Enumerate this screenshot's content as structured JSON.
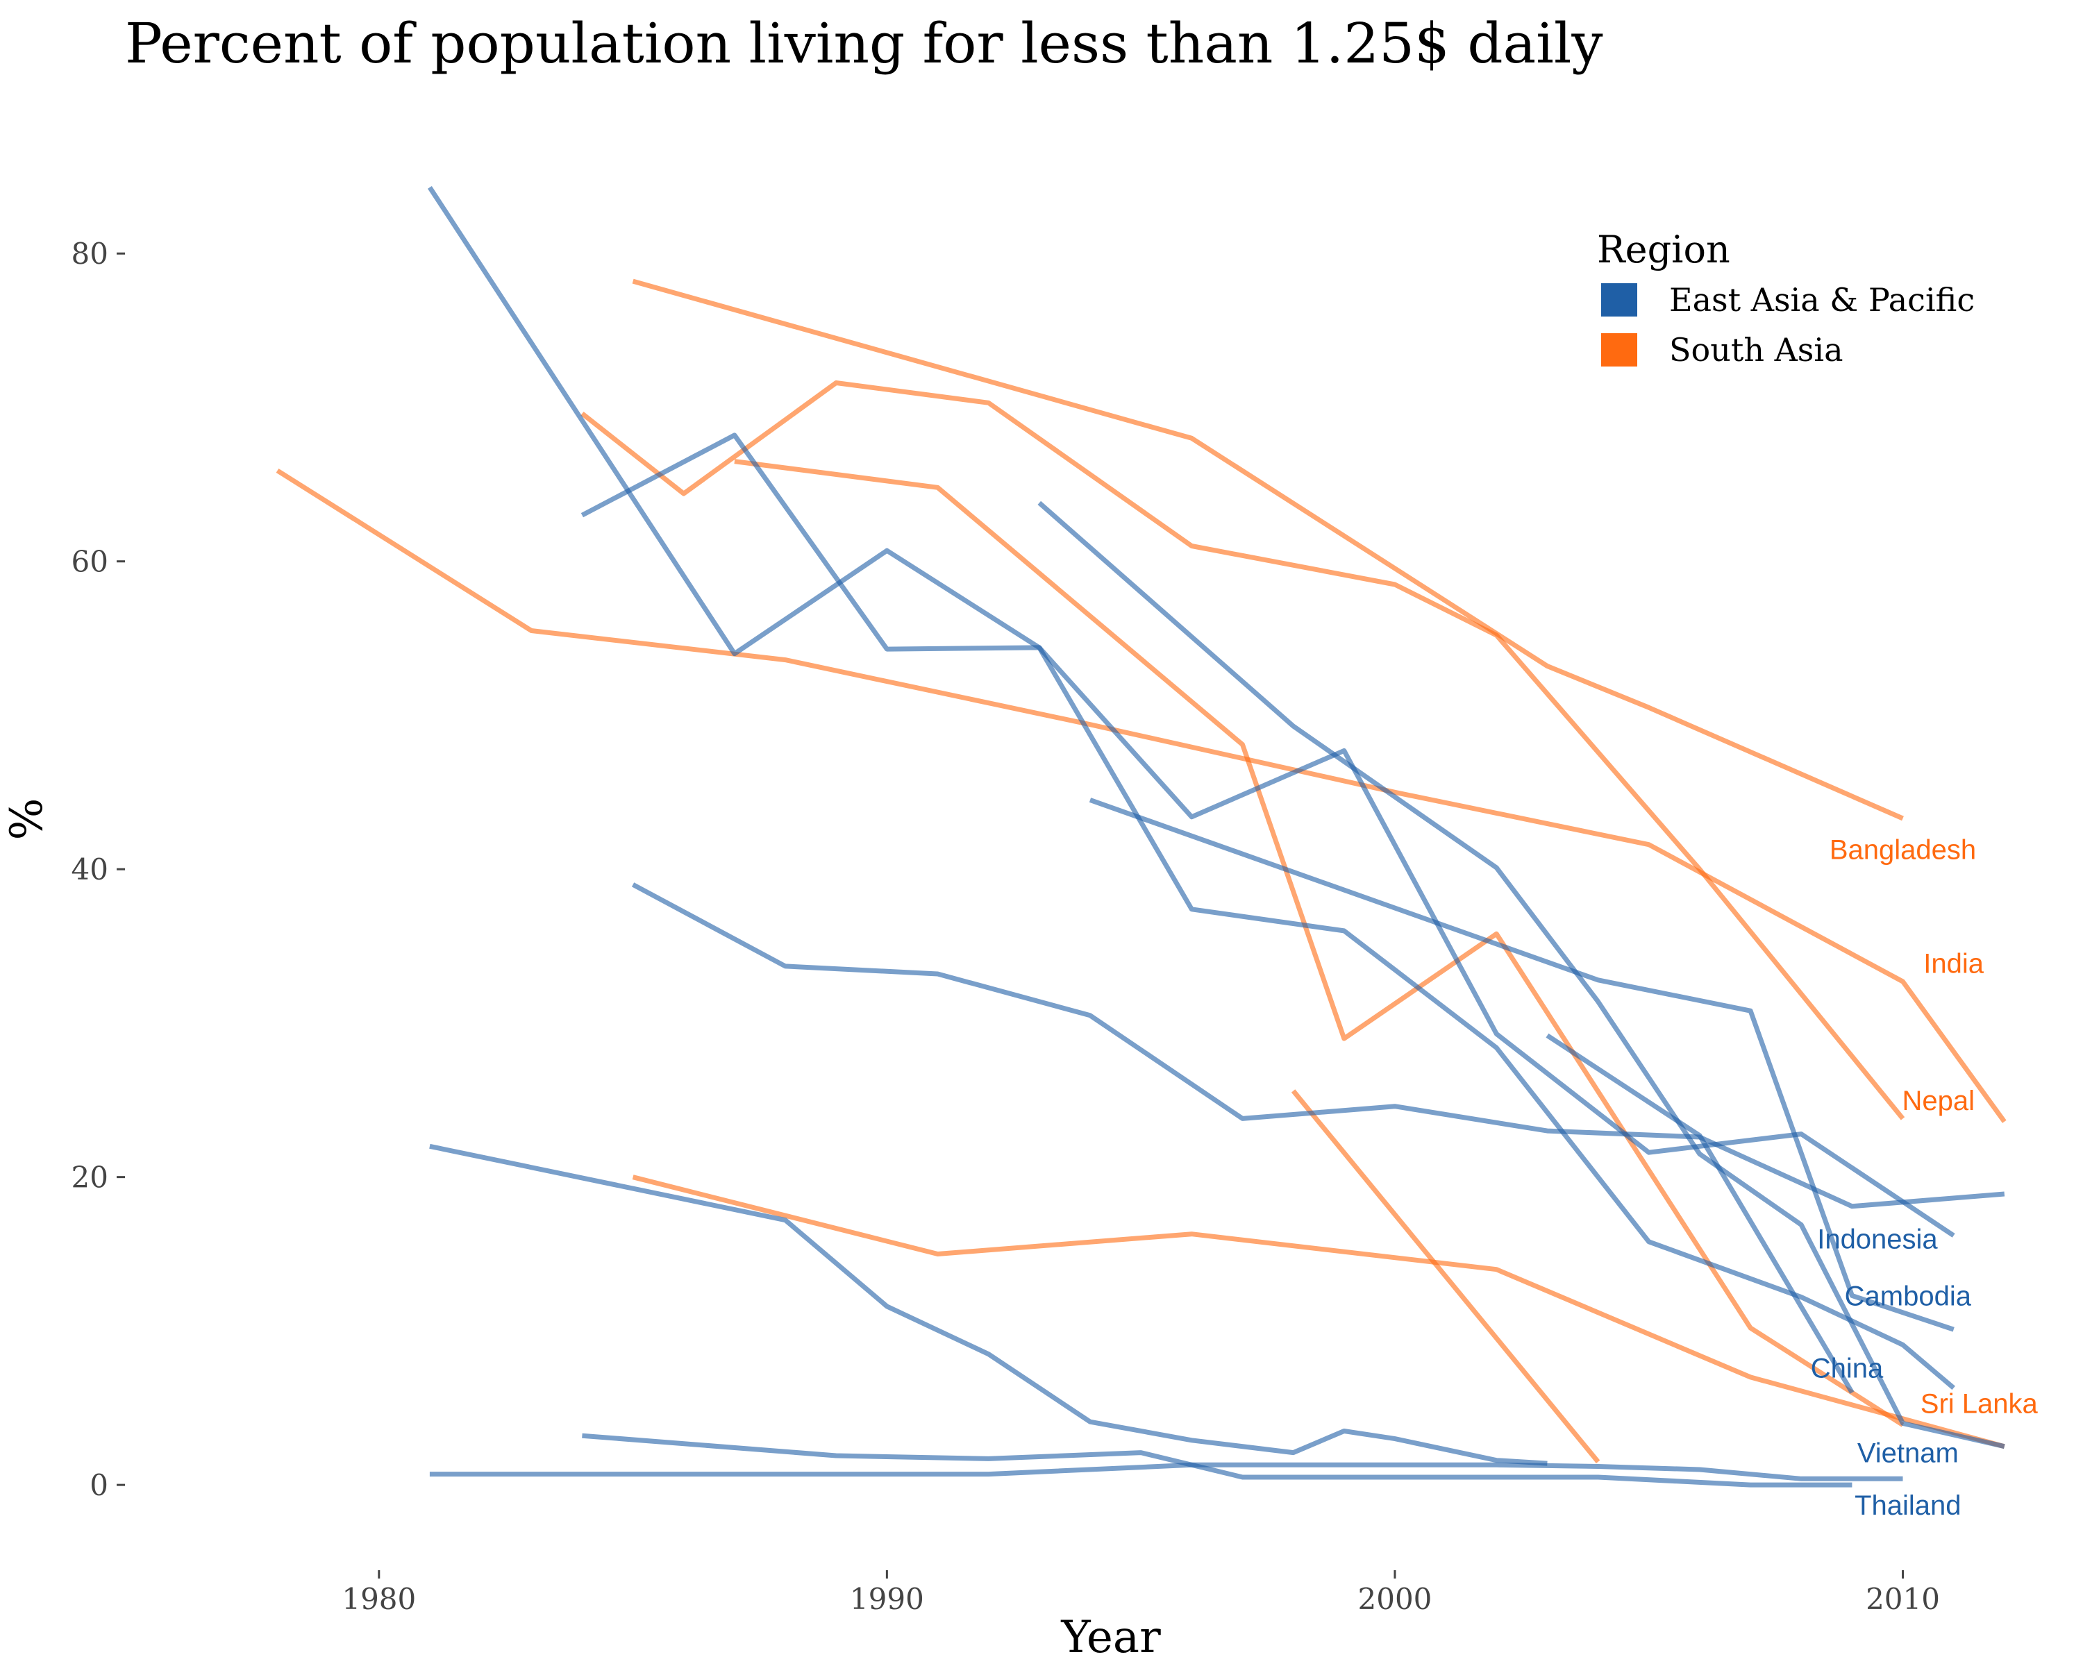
{
  "chart_data": {
    "type": "line",
    "title": "Percent of population living for less than 1.25$ daily",
    "xlabel": "Year",
    "ylabel": "%",
    "xlim": [
      1975,
      2013
    ],
    "ylim": [
      -5,
      87
    ],
    "x_ticks": [
      1980,
      1990,
      2000,
      2010
    ],
    "y_ticks": [
      0,
      20,
      40,
      60,
      80
    ],
    "grid": false,
    "legend": {
      "title": "Region",
      "placement": "top-right",
      "entries": [
        {
          "name": "East Asia & Pacific",
          "color": "#1f5fa6"
        },
        {
          "name": "South Asia",
          "color": "#ff6a10"
        }
      ]
    },
    "series": [
      {
        "region": "South Asia",
        "label": "Bangladesh",
        "label_at": [
          2010,
          41.3
        ],
        "points": [
          [
            1985,
            78.2
          ],
          [
            1996,
            68
          ],
          [
            2003,
            53.2
          ],
          [
            2005,
            50.5
          ],
          [
            2010,
            43.3
          ]
        ]
      },
      {
        "region": "South Asia",
        "label": "India",
        "label_at": [
          2011,
          33.9
        ],
        "points": [
          [
            1978,
            65.9
          ],
          [
            1983,
            55.5
          ],
          [
            1988,
            53.6
          ],
          [
            1994,
            49.4
          ],
          [
            2000,
            45
          ],
          [
            2005,
            41.6
          ],
          [
            2010,
            32.7
          ],
          [
            2012,
            23.6
          ]
        ]
      },
      {
        "region": "South Asia",
        "label": "Nepal",
        "label_at": [
          2010.7,
          25
        ],
        "points": [
          [
            1984,
            69.6
          ],
          [
            1986,
            64.4
          ],
          [
            1989,
            71.6
          ],
          [
            1992,
            70.3
          ],
          [
            1996,
            61
          ],
          [
            2000,
            58.5
          ],
          [
            2002,
            55.2
          ],
          [
            2006,
            40
          ],
          [
            2010,
            23.8
          ]
        ]
      },
      {
        "region": "South Asia",
        "label": "Sri Lanka",
        "label_at": [
          2011.5,
          5.3
        ],
        "points": [
          [
            1985,
            20
          ],
          [
            1991,
            15
          ],
          [
            1996,
            16.3
          ],
          [
            2002,
            14
          ],
          [
            2007,
            7
          ],
          [
            2012,
            2.5
          ]
        ]
      },
      {
        "region": "South Asia",
        "label": "",
        "points": [
          [
            1987,
            66.5
          ],
          [
            1991,
            64.8
          ],
          [
            1997,
            48.1
          ],
          [
            1999,
            29
          ],
          [
            2002,
            35.8
          ],
          [
            2007,
            10.2
          ],
          [
            2010,
            3.9
          ]
        ]
      },
      {
        "region": "South Asia",
        "label": "",
        "points": [
          [
            1998,
            25.6
          ],
          [
            2004,
            1.5
          ]
        ]
      },
      {
        "region": "East Asia & Pacific",
        "label": "Indonesia",
        "label_at": [
          2009.5,
          16
        ],
        "points": [
          [
            1984,
            63
          ],
          [
            1987,
            68.2
          ],
          [
            1990,
            54.3
          ],
          [
            1993,
            54.4
          ],
          [
            1996,
            43.4
          ],
          [
            1999,
            47.7
          ],
          [
            2002,
            29.3
          ],
          [
            2005,
            21.6
          ],
          [
            2008,
            22.8
          ],
          [
            2011,
            16.2
          ]
        ]
      },
      {
        "region": "East Asia & Pacific",
        "label": "Cambodia",
        "label_at": [
          2010.1,
          12.3
        ],
        "points": [
          [
            1994,
            44.5
          ],
          [
            2004,
            32.8
          ],
          [
            2007,
            30.8
          ],
          [
            2009,
            12.3
          ],
          [
            2011,
            10.1
          ]
        ]
      },
      {
        "region": "East Asia & Pacific",
        "label": "China",
        "label_at": [
          2008.9,
          7.6
        ],
        "points": [
          [
            1981,
            84.3
          ],
          [
            1987,
            54
          ],
          [
            1990,
            60.7
          ],
          [
            1993,
            54.4
          ],
          [
            1996,
            37.4
          ],
          [
            1999,
            36
          ],
          [
            2002,
            28.4
          ],
          [
            2005,
            15.8
          ],
          [
            2008,
            12.2
          ],
          [
            2010,
            9.1
          ],
          [
            2011,
            6.3
          ]
        ]
      },
      {
        "region": "East Asia & Pacific",
        "label": "Vietnam",
        "label_at": [
          2010.1,
          2.1
        ],
        "points": [
          [
            1993,
            63.8
          ],
          [
            1998,
            49.3
          ],
          [
            2002,
            40.1
          ],
          [
            2004,
            31.4
          ],
          [
            2006,
            21.5
          ],
          [
            2008,
            16.9
          ],
          [
            2010,
            4
          ],
          [
            2012,
            2.5
          ]
        ]
      },
      {
        "region": "East Asia & Pacific",
        "label": "Thailand",
        "label_at": [
          2010.1,
          -1.3
        ],
        "points": [
          [
            1981,
            0.7
          ],
          [
            1992,
            0.7
          ],
          [
            1996,
            1.3
          ],
          [
            2002,
            1.3
          ],
          [
            2004,
            1.2
          ],
          [
            2006,
            1
          ],
          [
            2008,
            0.4
          ],
          [
            2010,
            0.4
          ]
        ]
      },
      {
        "region": "East Asia & Pacific",
        "label": "",
        "points": [
          [
            1985,
            39
          ],
          [
            1988,
            33.7
          ],
          [
            1991,
            33.2
          ],
          [
            1994,
            30.5
          ],
          [
            1997,
            23.8
          ],
          [
            2000,
            24.6
          ],
          [
            2003,
            23
          ],
          [
            2006,
            22.6
          ],
          [
            2009,
            18.1
          ],
          [
            2012,
            18.9
          ]
        ]
      },
      {
        "region": "East Asia & Pacific",
        "label": "",
        "points": [
          [
            2003,
            29.2
          ],
          [
            2006,
            22.7
          ],
          [
            2009,
            6
          ]
        ]
      },
      {
        "region": "East Asia & Pacific",
        "label": "",
        "points": [
          [
            1981,
            22
          ],
          [
            1988,
            17.2
          ],
          [
            1990,
            11.6
          ],
          [
            1992,
            8.5
          ],
          [
            1994,
            4.1
          ],
          [
            1996,
            2.9
          ],
          [
            1998,
            2.1
          ],
          [
            1999,
            3.5
          ],
          [
            2000,
            3
          ],
          [
            2002,
            1.6
          ],
          [
            2003,
            1.4
          ]
        ]
      },
      {
        "region": "East Asia & Pacific",
        "label": "",
        "points": [
          [
            1984,
            3.2
          ],
          [
            1989,
            1.9
          ],
          [
            1992,
            1.7
          ],
          [
            1995,
            2.1
          ],
          [
            1997,
            0.5
          ],
          [
            2004,
            0.5
          ],
          [
            2007,
            0
          ],
          [
            2009,
            0
          ]
        ]
      }
    ]
  }
}
